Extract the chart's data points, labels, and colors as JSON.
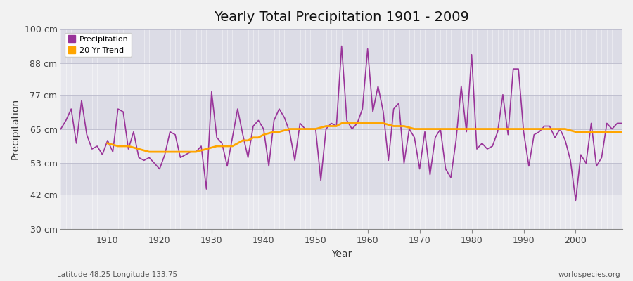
{
  "title": "Yearly Total Precipitation 1901 - 2009",
  "xlabel": "Year",
  "ylabel": "Precipitation",
  "lat_lon_label": "Latitude 48.25 Longitude 133.75",
  "watermark": "worldspecies.org",
  "ylim": [
    30,
    100
  ],
  "yticks": [
    30,
    42,
    53,
    65,
    77,
    88,
    100
  ],
  "ytick_labels": [
    "30 cm",
    "42 cm",
    "53 cm",
    "65 cm",
    "77 cm",
    "88 cm",
    "100 cm"
  ],
  "xlim": [
    1901,
    2009
  ],
  "xticks": [
    1910,
    1920,
    1930,
    1940,
    1950,
    1960,
    1970,
    1980,
    1990,
    2000
  ],
  "precip_color": "#993399",
  "trend_color": "#FFA500",
  "fig_bg_color": "#F0F0F0",
  "band_colors": [
    "#E8E8EE",
    "#DCDCE4"
  ],
  "grid_color": "#CCCCCC",
  "years": [
    1901,
    1902,
    1903,
    1904,
    1905,
    1906,
    1907,
    1908,
    1909,
    1910,
    1911,
    1912,
    1913,
    1914,
    1915,
    1916,
    1917,
    1918,
    1919,
    1920,
    1921,
    1922,
    1923,
    1924,
    1925,
    1926,
    1927,
    1928,
    1929,
    1930,
    1931,
    1932,
    1933,
    1934,
    1935,
    1936,
    1937,
    1938,
    1939,
    1940,
    1941,
    1942,
    1943,
    1944,
    1945,
    1946,
    1947,
    1948,
    1949,
    1950,
    1951,
    1952,
    1953,
    1954,
    1955,
    1956,
    1957,
    1958,
    1959,
    1960,
    1961,
    1962,
    1963,
    1964,
    1965,
    1966,
    1967,
    1968,
    1969,
    1970,
    1971,
    1972,
    1973,
    1974,
    1975,
    1976,
    1977,
    1978,
    1979,
    1980,
    1981,
    1982,
    1983,
    1984,
    1985,
    1986,
    1987,
    1988,
    1989,
    1990,
    1991,
    1992,
    1993,
    1994,
    1995,
    1996,
    1997,
    1998,
    1999,
    2000,
    2001,
    2002,
    2003,
    2004,
    2005,
    2006,
    2007,
    2008,
    2009
  ],
  "precip": [
    65,
    68,
    72,
    60,
    75,
    63,
    58,
    59,
    56,
    61,
    57,
    72,
    71,
    58,
    64,
    55,
    54,
    55,
    53,
    51,
    56,
    64,
    63,
    55,
    56,
    57,
    57,
    59,
    44,
    78,
    62,
    60,
    52,
    62,
    72,
    63,
    55,
    66,
    68,
    65,
    52,
    68,
    72,
    69,
    64,
    54,
    67,
    65,
    65,
    65,
    47,
    65,
    67,
    66,
    94,
    68,
    65,
    67,
    72,
    93,
    71,
    80,
    71,
    54,
    72,
    74,
    53,
    65,
    62,
    51,
    64,
    49,
    62,
    65,
    51,
    48,
    61,
    80,
    64,
    91,
    58,
    60,
    58,
    59,
    64,
    77,
    63,
    86,
    86,
    64,
    52,
    63,
    64,
    66,
    66,
    62,
    65,
    61,
    54,
    40,
    56,
    53,
    67,
    52,
    55,
    67,
    65,
    67,
    67
  ],
  "trend": [
    null,
    null,
    null,
    null,
    null,
    null,
    null,
    null,
    null,
    60,
    59.5,
    59,
    59,
    59,
    58.5,
    58,
    57.5,
    57,
    57,
    57,
    57,
    57,
    57,
    57,
    57,
    57,
    57,
    57.5,
    58,
    58.5,
    59,
    59,
    59,
    59,
    60,
    61,
    61,
    62,
    62,
    63,
    63.5,
    64,
    64,
    64.5,
    65,
    65,
    65,
    65,
    65,
    65,
    65.5,
    66,
    66,
    66,
    67,
    67,
    67,
    67,
    67,
    67,
    67,
    67,
    67,
    66.5,
    66,
    66,
    66,
    65.5,
    65,
    65,
    65,
    65,
    65,
    65,
    65,
    65,
    65,
    65,
    65,
    65,
    65,
    65,
    65,
    65,
    65,
    65,
    65,
    65,
    65,
    65,
    65,
    65,
    65,
    65,
    65,
    65,
    65,
    65,
    64.5,
    64,
    64,
    64,
    64,
    64,
    64,
    64,
    64,
    64,
    64
  ]
}
